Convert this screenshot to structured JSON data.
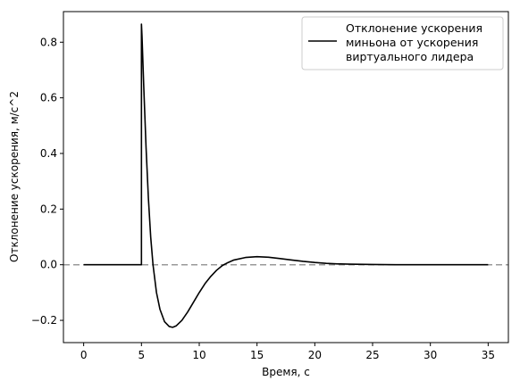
{
  "chart_data": {
    "type": "line",
    "title": "",
    "xlabel": "Время, с",
    "ylabel": "Отклонение ускорения, м/с^2",
    "xlim": [
      -1.75,
      36.75
    ],
    "ylim": [
      -0.28,
      0.91
    ],
    "x_ticks": [
      0,
      5,
      10,
      15,
      20,
      25,
      30,
      35
    ],
    "y_ticks": [
      -0.2,
      0.0,
      0.2,
      0.4,
      0.6,
      0.8
    ],
    "x_tick_labels": [
      "0",
      "5",
      "10",
      "15",
      "20",
      "25",
      "30",
      "35"
    ],
    "y_tick_labels": [
      "−0.2",
      "0.0",
      "0.2",
      "0.4",
      "0.6",
      "0.8"
    ],
    "grid": false,
    "legend_position": "top-right",
    "reference_line": {
      "y": 0.0,
      "style": "dashed",
      "color": "#999999"
    },
    "series": [
      {
        "name": "Отклонение ускорения миньона от ускорения виртуального лидера",
        "legend_lines": [
          "Отклонение ускорения",
          "миньона от ускорения",
          "виртуального лидера"
        ],
        "color": "#000000",
        "x": [
          0,
          5.0,
          5.0,
          5.05,
          5.2,
          5.4,
          5.6,
          5.8,
          6.0,
          6.3,
          6.6,
          7.0,
          7.4,
          7.7,
          8.0,
          8.5,
          9.0,
          9.5,
          10.0,
          10.5,
          11.0,
          11.5,
          12.0,
          12.5,
          13.0,
          14.0,
          15.0,
          16.0,
          17.0,
          18.0,
          19.0,
          20.0,
          21.0,
          22.0,
          23.0,
          25.0,
          27.0,
          30.0,
          33.0,
          35.0
        ],
        "y": [
          0.0,
          0.0,
          0.865,
          0.82,
          0.64,
          0.42,
          0.24,
          0.1,
          0.0,
          -0.1,
          -0.16,
          -0.205,
          -0.222,
          -0.225,
          -0.22,
          -0.2,
          -0.17,
          -0.135,
          -0.1,
          -0.068,
          -0.042,
          -0.02,
          -0.003,
          0.008,
          0.017,
          0.026,
          0.029,
          0.027,
          0.022,
          0.017,
          0.012,
          0.008,
          0.005,
          0.003,
          0.002,
          0.001,
          0.0,
          0.0,
          0.0,
          0.0
        ]
      }
    ]
  }
}
